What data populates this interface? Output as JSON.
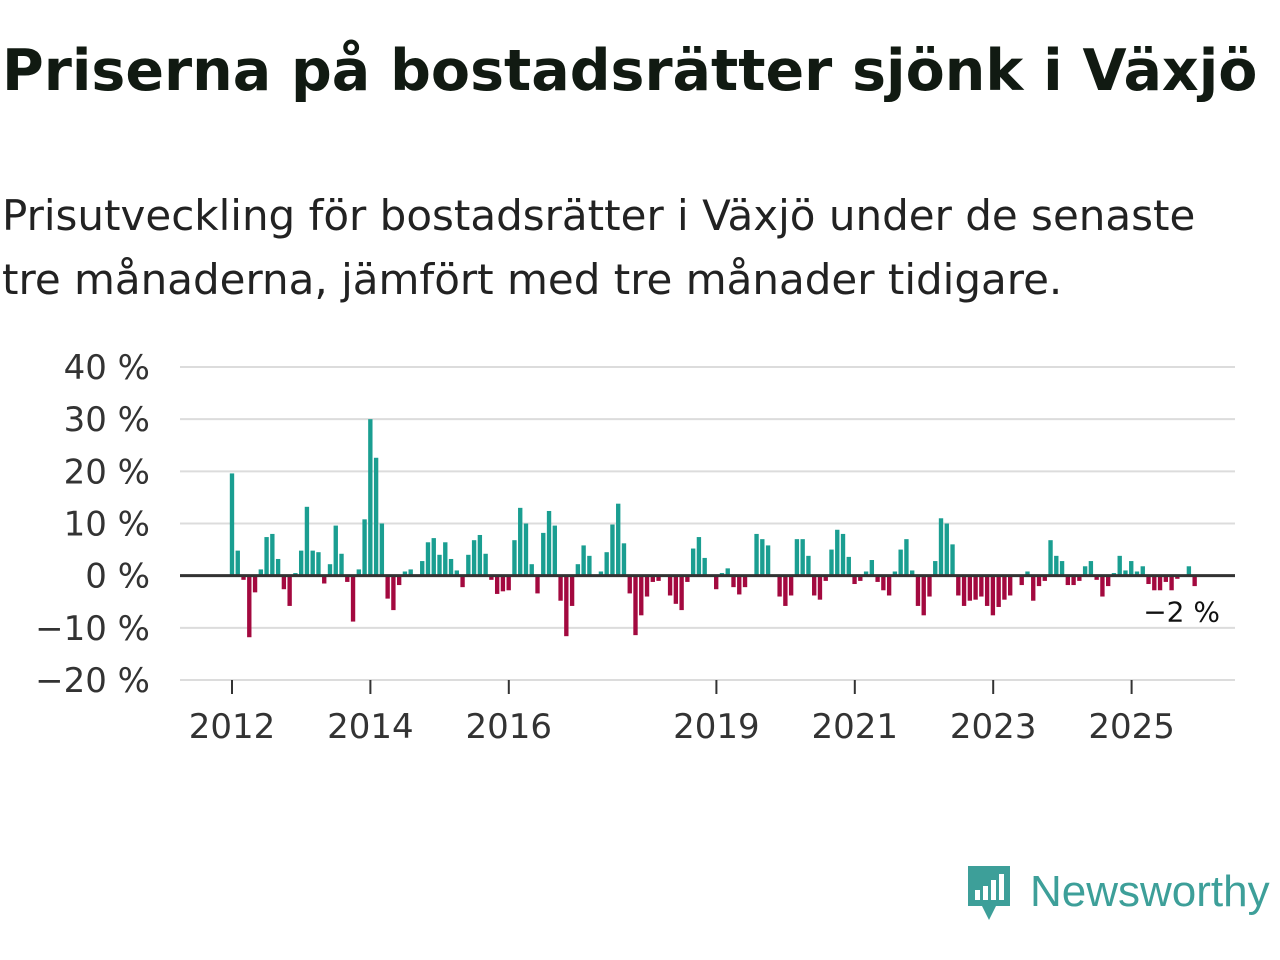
{
  "title": "Priserna på bostadsrätter sjönk i Växjö",
  "subtitle_line1": "Prisutveckling för bostadsrätter i Växjö under de senaste",
  "subtitle_line2": "tre månaderna, jämfört med tre månader tidigare.",
  "brand": "Newsworthy",
  "colors": {
    "positive": "#1a9e91",
    "negative": "#a3093f",
    "grid": "#dcdcdc",
    "brand": "#3d9f99"
  },
  "chart_data": {
    "type": "bar",
    "title": "Prisutveckling för bostadsrätter i Växjö",
    "xlabel": "",
    "ylabel": "",
    "ylim": [
      -20,
      40
    ],
    "yticks": [
      40,
      30,
      20,
      10,
      0,
      -10,
      -20
    ],
    "ytick_labels": [
      "40 %",
      "30 %",
      "20 %",
      "10 %",
      "0 %",
      "−10 %",
      "−20 %"
    ],
    "x_start": 2012.0,
    "x_step": 0.0833,
    "xticks": [
      2012,
      2014,
      2016,
      2019,
      2021,
      2023,
      2025
    ],
    "xtick_labels": [
      "2012",
      "2014",
      "2016",
      "2019",
      "2021",
      "2023",
      "2025"
    ],
    "last_label": "−2 %",
    "values": [
      19.6,
      4.8,
      -0.8,
      -11.8,
      -3.2,
      1.2,
      7.4,
      8.0,
      3.2,
      -2.6,
      -5.8,
      0.5,
      4.8,
      13.2,
      4.8,
      4.5,
      -1.5,
      2.2,
      9.6,
      4.2,
      -1.2,
      -8.8,
      1.2,
      10.8,
      30.0,
      22.6,
      10.0,
      -4.4,
      -6.6,
      -1.8,
      0.8,
      1.2,
      0,
      2.8,
      6.4,
      7.2,
      4.0,
      6.4,
      3.2,
      1.0,
      -2.2,
      4.0,
      6.8,
      7.8,
      4.2,
      -0.8,
      -3.5,
      -3.0,
      -2.8,
      6.8,
      13.0,
      10.0,
      2.2,
      -3.4,
      8.2,
      12.4,
      9.6,
      -4.8,
      -11.6,
      -5.8,
      2.2,
      5.8,
      3.8,
      0,
      0.8,
      4.5,
      9.8,
      13.8,
      6.2,
      -3.4,
      -11.4,
      -7.6,
      -4.0,
      -1.2,
      -1.0,
      0,
      -3.8,
      -5.4,
      -6.6,
      -1.2,
      5.2,
      7.4,
      3.4,
      0,
      -2.6,
      0.5,
      1.4,
      -2.2,
      -3.6,
      -2.2,
      0,
      8.0,
      7.0,
      5.8,
      0,
      -4.0,
      -5.8,
      -3.8,
      7.0,
      7.0,
      3.8,
      -3.8,
      -4.6,
      -1.0,
      5.0,
      8.8,
      8.0,
      3.6,
      -1.6,
      -1.0,
      0.8,
      3.0,
      -1.2,
      -2.8,
      -3.8,
      0.8,
      5.0,
      7.0,
      1.0,
      -5.8,
      -7.6,
      -4.0,
      2.8,
      11.0,
      10.0,
      6.0,
      -3.8,
      -5.8,
      -4.8,
      -4.6,
      -4.0,
      -5.8,
      -7.6,
      -6.0,
      -4.6,
      -3.8,
      0,
      -1.8,
      0.8,
      -4.8,
      -2.0,
      -1.0,
      6.8,
      3.8,
      2.8,
      -1.8,
      -1.8,
      -1.0,
      1.8,
      2.8,
      -0.8,
      -4.0,
      -2.0,
      0.5,
      3.8,
      1.0,
      2.8,
      0.8,
      1.8,
      -1.6,
      -2.8,
      -2.8,
      -1.2,
      -2.8,
      -0.6,
      0,
      1.8,
      -2.0
    ]
  }
}
